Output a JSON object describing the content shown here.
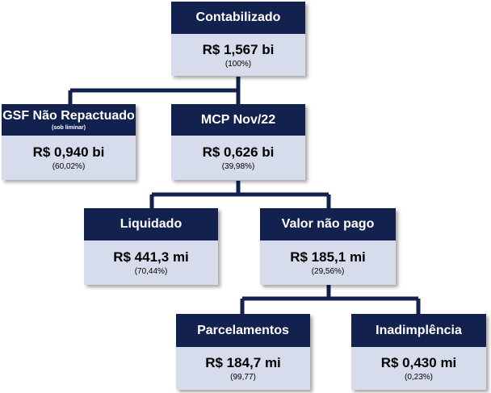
{
  "colors": {
    "header_bg": "#13214f",
    "body_bg": "#d6dceb",
    "connector": "#13214f"
  },
  "nodes": {
    "contabilizado": {
      "title": "Contabilizado",
      "value": "R$ 1,567 bi",
      "pct": "(100%)"
    },
    "gsf": {
      "title": "GSF Não Repactuado",
      "subtitle": "(sob liminar)",
      "value": "R$ 0,940 bi",
      "pct": "(60,02%)"
    },
    "mcp": {
      "title": "MCP Nov/22",
      "value": "R$ 0,626 bi",
      "pct": "(39,98%)"
    },
    "liquidado": {
      "title": "Liquidado",
      "value": "R$ 441,3 mi",
      "pct": "(70,44%)"
    },
    "nao_pago": {
      "title": "Valor não pago",
      "value": "R$ 185,1 mi",
      "pct": "(29,56%)"
    },
    "parcelamentos": {
      "title": "Parcelamentos",
      "value": "R$ 184,7 mi",
      "pct": "(99,77)"
    },
    "inadimplencia": {
      "title": "Inadimplência",
      "value": "R$ 0,430 mi",
      "pct": "(0,23%)"
    }
  }
}
